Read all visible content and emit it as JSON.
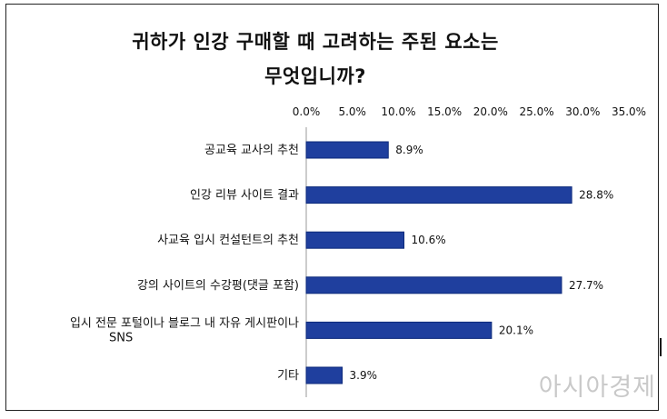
{
  "title_line1": "귀하가 인강 구매할 때 고려하는 주된 요소는",
  "title_line2": "무엇입니까?",
  "watermark": "아시아경제",
  "colors": {
    "bar": "#1f3f9e",
    "bar_edge": "#0d2a7a",
    "text": "#111111",
    "frame": "#222222"
  },
  "chart_data": {
    "type": "bar",
    "orientation": "horizontal",
    "title": "귀하가 인강 구매할 때 고려하는 주된 요소는 무엇입니까?",
    "categories": [
      [
        "공교육 교사의 추천"
      ],
      [
        "인강 리뷰 사이트 결과"
      ],
      [
        "사교육 입시 컨설턴트의 추천"
      ],
      [
        "강의 사이트의 수강평(댓글 포함)"
      ],
      [
        "입시 전문 포털이나 블로그 내 자유 게시판이나",
        "SNS"
      ],
      [
        "기타"
      ]
    ],
    "values": [
      8.9,
      28.8,
      10.6,
      27.7,
      20.1,
      3.9
    ],
    "value_labels": [
      "8.9%",
      "28.8%",
      "10.6%",
      "27.7%",
      "20.1%",
      "3.9%"
    ],
    "xlim": [
      0,
      35
    ],
    "xticks": [
      "0.0%",
      "5.0%",
      "10.0%",
      "15.0%",
      "20.0%",
      "25.0%",
      "30.0%",
      "35.0%"
    ],
    "xaxis_position": "top",
    "grid": false,
    "legend": "none"
  }
}
